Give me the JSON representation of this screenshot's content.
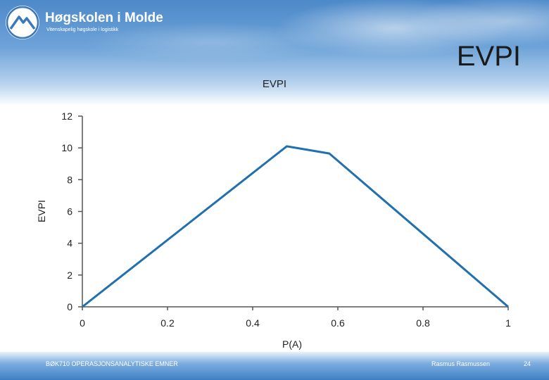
{
  "header": {
    "logo_name": "Høgskolen i Molde",
    "logo_tagline": "Vitenskapelig høgskole i logistikk",
    "slide_title": "EVPI"
  },
  "footer": {
    "course": "BØK710 OPERASJONSANALYTISKE EMNER",
    "author": "Rasmus Rasmussen",
    "page_number": "24"
  },
  "colors": {
    "line": "#2070b0",
    "axis": "#555555"
  },
  "chart_data": {
    "type": "line",
    "title": "EVPI",
    "xlabel": "P(A)",
    "ylabel": "EVPI",
    "xlim": [
      0,
      1
    ],
    "ylim": [
      0,
      12
    ],
    "xticks": [
      "0",
      "0.2",
      "0.4",
      "0.6",
      "0.8",
      "1"
    ],
    "yticks": [
      "0",
      "2",
      "4",
      "6",
      "8",
      "10",
      "12"
    ],
    "grid": false,
    "series": [
      {
        "x": [
          0,
          0.48,
          0.58,
          1
        ],
        "y": [
          0,
          10.1,
          9.65,
          0
        ]
      }
    ]
  }
}
